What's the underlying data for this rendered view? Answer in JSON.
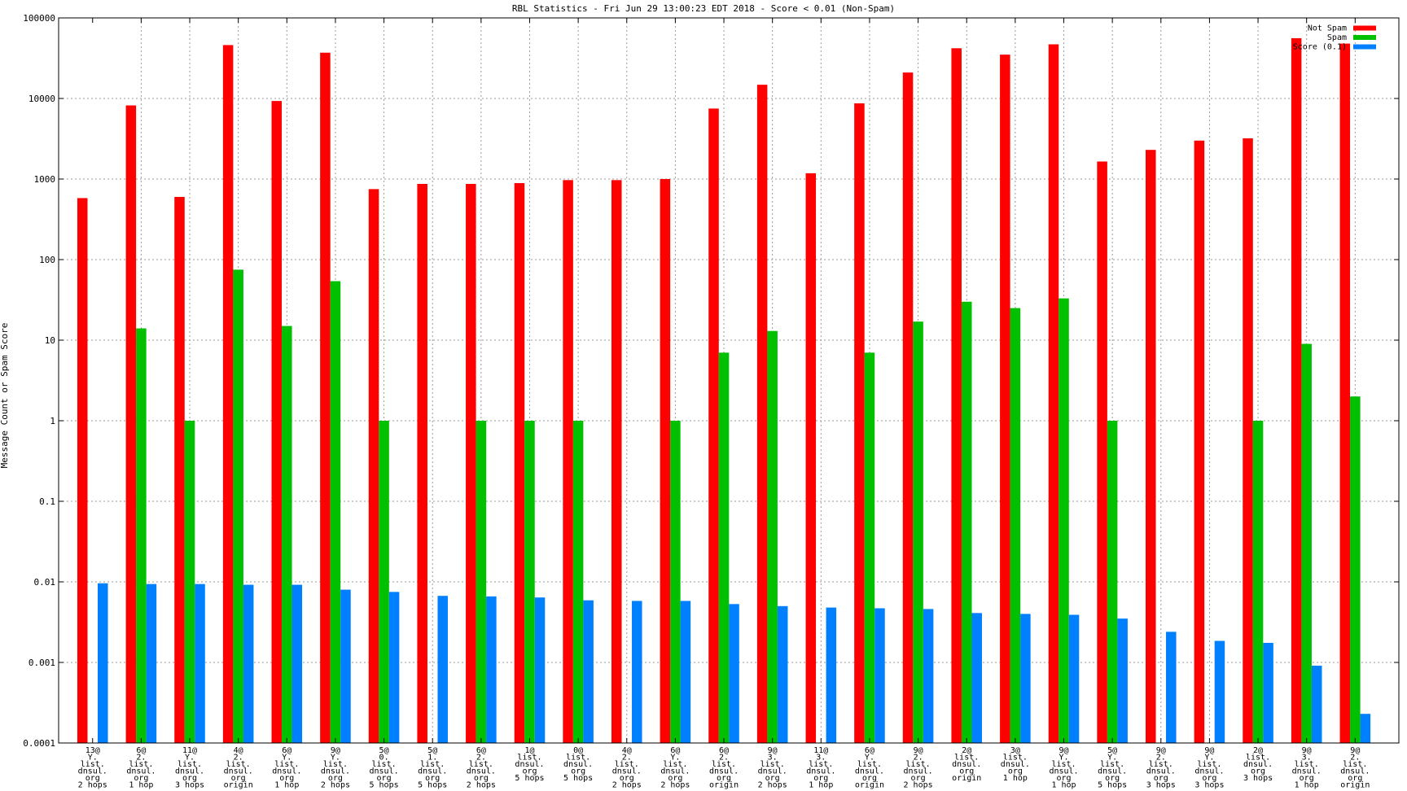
{
  "chart_data": {
    "type": "bar",
    "title": "RBL Statistics - Fri Jun 29 13:00:23 EDT 2018 - Score < 0.01 (Non-Spam)",
    "ylabel": "Message Count or Spam Score",
    "xlabel": "",
    "yscale": "log",
    "ylim": [
      0.0001,
      100000
    ],
    "yticks": [
      "0.0001",
      "0.001",
      "0.01",
      "0.1",
      "1",
      "10",
      "100",
      "1000",
      "10000",
      "100000"
    ],
    "grid": true,
    "legend_position": "top-right",
    "categories": [
      [
        "13@",
        "Y.",
        "list.",
        "dnsul.",
        "org",
        "2 hops"
      ],
      [
        "6@",
        "2.",
        "list.",
        "dnsul.",
        "org",
        "1 hop"
      ],
      [
        "11@",
        "Y.",
        "list.",
        "dnsul.",
        "org",
        "3 hops"
      ],
      [
        "4@",
        "2.",
        "list.",
        "dnsul.",
        "org",
        "origin"
      ],
      [
        "6@",
        "Y.",
        "list.",
        "dnsul.",
        "org",
        "1 hop"
      ],
      [
        "9@",
        "Y.",
        "list.",
        "dnsul.",
        "org",
        "2 hops"
      ],
      [
        "5@",
        "0.",
        "list.",
        "dnsul.",
        "org",
        "5 hops"
      ],
      [
        "5@",
        "1.",
        "list.",
        "dnsul.",
        "org",
        "5 hops"
      ],
      [
        "6@",
        "2.",
        "list.",
        "dnsul.",
        "org",
        "2 hops"
      ],
      [
        "1@",
        "list.",
        "dnsul.",
        "org",
        "5 hops"
      ],
      [
        "0@",
        "list.",
        "dnsul.",
        "org",
        "5 hops"
      ],
      [
        "4@",
        "2.",
        "list.",
        "dnsul.",
        "org",
        "2 hops"
      ],
      [
        "6@",
        "Y.",
        "list.",
        "dnsul.",
        "org",
        "2 hops"
      ],
      [
        "6@",
        "2.",
        "list.",
        "dnsul.",
        "org",
        "origin"
      ],
      [
        "9@",
        "3.",
        "list.",
        "dnsul.",
        "org",
        "2 hops"
      ],
      [
        "11@",
        "3.",
        "list.",
        "dnsul.",
        "org",
        "1 hop"
      ],
      [
        "6@",
        "Y.",
        "list.",
        "dnsul.",
        "org",
        "origin"
      ],
      [
        "9@",
        "2.",
        "list.",
        "dnsul.",
        "org",
        "2 hops"
      ],
      [
        "2@",
        "list.",
        "dnsul.",
        "org",
        "origin"
      ],
      [
        "3@",
        "list.",
        "dnsul.",
        "org",
        "1 hop"
      ],
      [
        "9@",
        "Y.",
        "list.",
        "dnsul.",
        "org",
        "1 hop"
      ],
      [
        "5@",
        "Y.",
        "list.",
        "dnsul.",
        "org",
        "5 hops"
      ],
      [
        "9@",
        "2.",
        "list.",
        "dnsul.",
        "org",
        "3 hops"
      ],
      [
        "9@",
        "Y.",
        "list.",
        "dnsul.",
        "org",
        "3 hops"
      ],
      [
        "2@",
        "list.",
        "dnsul.",
        "org",
        "3 hops"
      ],
      [
        "9@",
        "3.",
        "list.",
        "dnsul.",
        "org",
        "1 hop"
      ],
      [
        "9@",
        "2.",
        "list.",
        "dnsul.",
        "org",
        "origin"
      ]
    ],
    "series": [
      {
        "name": "Not Spam",
        "color": "#ff0000",
        "values": [
          580,
          8200,
          600,
          46000,
          9300,
          37000,
          750,
          870,
          870,
          890,
          970,
          970,
          1000,
          7500,
          14800,
          1180,
          8700,
          21000,
          42000,
          35000,
          47000,
          1650,
          2300,
          3000,
          3200,
          56000,
          48000
        ]
      },
      {
        "name": "Spam",
        "color": "#00c000",
        "values": [
          null,
          14,
          1,
          75,
          15,
          54,
          1,
          null,
          1,
          1,
          1,
          null,
          1,
          7,
          13,
          null,
          7,
          17,
          30,
          25,
          33,
          1,
          null,
          null,
          1,
          9,
          2
        ]
      },
      {
        "name": "Score (0.1)",
        "color": "#0080ff",
        "values": [
          0.0096,
          0.0094,
          0.0094,
          0.0092,
          0.0092,
          0.008,
          0.0075,
          0.0067,
          0.0066,
          0.0064,
          0.0059,
          0.0058,
          0.0058,
          0.0053,
          0.005,
          0.0048,
          0.0047,
          0.0046,
          0.0041,
          0.004,
          0.0039,
          0.0035,
          0.0024,
          0.00185,
          0.00175,
          0.00091,
          0.00023
        ]
      }
    ]
  }
}
